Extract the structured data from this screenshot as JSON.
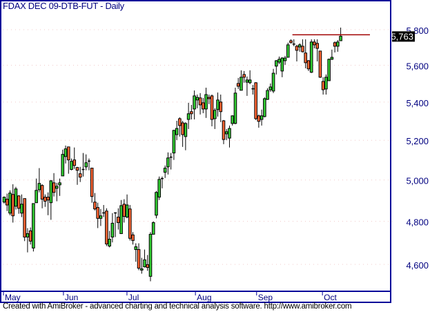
{
  "title": "FDAX DEC 09-DTB-FUT - Daily",
  "footer": "Created with AmiBroker - advanced charting and technical analysis software. http://www.amibroker.com",
  "colors": {
    "up": "#33cc33",
    "down": "#ff6633",
    "axis": "#000099",
    "grid": "#f0c8c8",
    "line": "#a00000",
    "last_price_bg": "#000000"
  },
  "chart_data": {
    "type": "candlestick",
    "title": "FDAX DEC 09-DTB-FUT - Daily",
    "y_scale": "log",
    "ylim": [
      4500,
      5850
    ],
    "y_ticks": [
      4600,
      4800,
      5000,
      5200,
      5400,
      5600,
      5800
    ],
    "y_tick_labels": [
      "4,600",
      "4,800",
      "5,000",
      "5,200",
      "5,400",
      "5,600",
      "5,800"
    ],
    "grid": "horizontal dotted",
    "x_months": [
      {
        "label": "May",
        "bar": 0
      },
      {
        "label": "Jun",
        "bar": 20.5
      },
      {
        "label": "Jul",
        "bar": 42.2
      },
      {
        "label": "Aug",
        "bar": 65.6
      },
      {
        "label": "Sep",
        "bar": 86.5
      },
      {
        "label": "Oct",
        "bar": 109
      }
    ],
    "last_price": 5763,
    "last_price_label": "5,763",
    "horizontal_line": {
      "level": 5771,
      "from_bar": 98.5,
      "to_bar": 125
    },
    "ohlc_columns": [
      "open",
      "high",
      "low",
      "close"
    ],
    "ohlc": [
      [
        4892,
        4919,
        4885,
        4916
      ],
      [
        4906,
        4933,
        4849,
        4878
      ],
      [
        4839,
        4949,
        4829,
        4936
      ],
      [
        4929,
        4979,
        4794,
        4826
      ],
      [
        4872,
        4966,
        4856,
        4956
      ],
      [
        4922,
        4926,
        4836,
        4862
      ],
      [
        4839,
        4929,
        4820,
        4882
      ],
      [
        4909,
        4909,
        4707,
        4726
      ],
      [
        4726,
        4768,
        4655,
        4742
      ],
      [
        4755,
        4771,
        4691,
        4707
      ],
      [
        4675,
        4885,
        4659,
        4885
      ],
      [
        4889,
        5007,
        4889,
        4949
      ],
      [
        4952,
        5059,
        4939,
        4983
      ],
      [
        4973,
        4979,
        4862,
        4906
      ],
      [
        4916,
        4929,
        4869,
        4896
      ],
      [
        4916,
        4939,
        4829,
        4902
      ],
      [
        4889,
        5000,
        4807,
        4996
      ],
      [
        4986,
        5034,
        4919,
        4939
      ],
      [
        4959,
        4986,
        4896,
        4969
      ],
      [
        4976,
        5007,
        4922,
        4986
      ],
      [
        5020,
        5152,
        5020,
        5128
      ],
      [
        5117,
        5173,
        5082,
        5156
      ],
      [
        5166,
        5166,
        5031,
        5100
      ],
      [
        5052,
        5107,
        5048,
        5093
      ],
      [
        5100,
        5163,
        5055,
        5072
      ],
      [
        5062,
        5065,
        4976,
        5048
      ],
      [
        5031,
        5065,
        4990,
        5014
      ],
      [
        5052,
        5135,
        5017,
        5050
      ],
      [
        5065,
        5128,
        5048,
        5086
      ],
      [
        5093,
        5107,
        5048,
        5094
      ],
      [
        5059,
        5059,
        4889,
        4919
      ],
      [
        4892,
        4936,
        4852,
        4859
      ],
      [
        4866,
        4889,
        4768,
        4814
      ],
      [
        4814,
        4859,
        4778,
        4826
      ],
      [
        4839,
        4878,
        4820,
        4840
      ],
      [
        4849,
        4862,
        4684,
        4694
      ],
      [
        4684,
        4755,
        4678,
        4716
      ],
      [
        4726,
        4839,
        4701,
        4791
      ],
      [
        4839,
        4843,
        4726,
        4840
      ],
      [
        4820,
        4862,
        4761,
        4794
      ],
      [
        4742,
        4902,
        4742,
        4875
      ],
      [
        4882,
        4906,
        4794,
        4823
      ],
      [
        4820,
        4929,
        4814,
        4878
      ],
      [
        4859,
        4878,
        4710,
        4720
      ],
      [
        4736,
        4749,
        4691,
        4710
      ],
      [
        4668,
        4697,
        4612,
        4681
      ],
      [
        4668,
        4697,
        4574,
        4583
      ],
      [
        4574,
        4630,
        4558,
        4580
      ],
      [
        4589,
        4668,
        4586,
        4621
      ],
      [
        4599,
        4643,
        4571,
        4586
      ],
      [
        4546,
        4749,
        4524,
        4739
      ],
      [
        4739,
        4800,
        4739,
        4794
      ],
      [
        4829,
        4946,
        4814,
        4939
      ],
      [
        4916,
        5017,
        4902,
        5003
      ],
      [
        5006,
        5017,
        4959,
        5007
      ],
      [
        5038,
        5072,
        5010,
        5059
      ],
      [
        5065,
        5138,
        5027,
        5110
      ],
      [
        5113,
        5135,
        5052,
        5114
      ],
      [
        5135,
        5254,
        5100,
        5251
      ],
      [
        5229,
        5301,
        5201,
        5261
      ],
      [
        5312,
        5319,
        5219,
        5276
      ],
      [
        5290,
        5301,
        5166,
        5229
      ],
      [
        5219,
        5294,
        5149,
        5287
      ],
      [
        5308,
        5396,
        5258,
        5338
      ],
      [
        5349,
        5385,
        5308,
        5338
      ],
      [
        5363,
        5462,
        5308,
        5433
      ],
      [
        5411,
        5440,
        5367,
        5425
      ],
      [
        5422,
        5448,
        5334,
        5385
      ],
      [
        5396,
        5422,
        5341,
        5363
      ],
      [
        5363,
        5477,
        5316,
        5440
      ],
      [
        5425,
        5440,
        5389,
        5418
      ],
      [
        5433,
        5440,
        5272,
        5308
      ],
      [
        5312,
        5367,
        5258,
        5356
      ],
      [
        5360,
        5451,
        5323,
        5411
      ],
      [
        5400,
        5440,
        5294,
        5349
      ],
      [
        5301,
        5305,
        5180,
        5204
      ],
      [
        5233,
        5258,
        5201,
        5244
      ],
      [
        5211,
        5276,
        5163,
        5261
      ],
      [
        5287,
        5330,
        5276,
        5327
      ],
      [
        5287,
        5477,
        5283,
        5448
      ],
      [
        5500,
        5530,
        5470,
        5485
      ],
      [
        5463,
        5572,
        5463,
        5534
      ],
      [
        5549,
        5568,
        5504,
        5534
      ],
      [
        5507,
        5538,
        5433,
        5519
      ],
      [
        5504,
        5572,
        5496,
        5519
      ],
      [
        5470,
        5492,
        5440,
        5471
      ],
      [
        5504,
        5507,
        5305,
        5312
      ],
      [
        5327,
        5334,
        5265,
        5298
      ],
      [
        5308,
        5360,
        5276,
        5327
      ],
      [
        5323,
        5425,
        5319,
        5418
      ],
      [
        5414,
        5474,
        5411,
        5462
      ],
      [
        5466,
        5500,
        5455,
        5481
      ],
      [
        5459,
        5580,
        5448,
        5556
      ],
      [
        5595,
        5629,
        5549,
        5625
      ],
      [
        5617,
        5648,
        5606,
        5633
      ],
      [
        5568,
        5644,
        5534,
        5640
      ],
      [
        5625,
        5652,
        5602,
        5640
      ],
      [
        5644,
        5726,
        5644,
        5714
      ],
      [
        5737,
        5745,
        5722,
        5726
      ],
      [
        5718,
        5745,
        5706,
        5717
      ],
      [
        5706,
        5714,
        5621,
        5683
      ],
      [
        5702,
        5722,
        5675,
        5714
      ],
      [
        5706,
        5745,
        5671,
        5675
      ],
      [
        5668,
        5745,
        5583,
        5614
      ],
      [
        5625,
        5629,
        5568,
        5580
      ],
      [
        5561,
        5745,
        5557,
        5730
      ],
      [
        5730,
        5745,
        5694,
        5714
      ],
      [
        5722,
        5745,
        5621,
        5694
      ],
      [
        5679,
        5679,
        5530,
        5534
      ],
      [
        5511,
        5534,
        5440,
        5466
      ],
      [
        5470,
        5549,
        5440,
        5534
      ],
      [
        5515,
        5637,
        5515,
        5633
      ],
      [
        5633,
        5687,
        5629,
        5644
      ],
      [
        5726,
        5733,
        5671,
        5706
      ],
      [
        5706,
        5741,
        5675,
        5730
      ],
      [
        5737,
        5812,
        5737,
        5763
      ]
    ]
  }
}
